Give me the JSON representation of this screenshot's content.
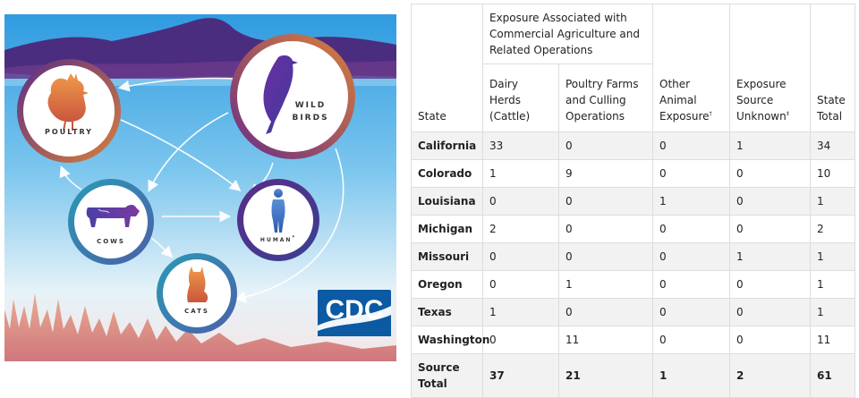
{
  "illustration": {
    "nodes": {
      "poultry": "POULTRY",
      "wild_birds_line1": "WILD",
      "wild_birds_line2": "BIRDS",
      "cows": "COWS",
      "human": "HUMAN",
      "human_sup": "*",
      "cats": "CATS"
    },
    "logo": "CDC",
    "colors": {
      "sky_top": "#3aa6e3",
      "sky_bottom": "#cfe9f6",
      "mountains": "#4b2d7f",
      "ring_purple": "#5a2d86",
      "ring_teal": "#2a9bb5",
      "ring_orange": "#d97a3b",
      "logo_bg": "#0b5aa3"
    }
  },
  "table": {
    "header": {
      "state": "State",
      "group": "Exposure Associated with Commercial Agriculture and Related Operations",
      "dairy": "Dairy Herds (Cattle)",
      "poultry": "Poultry Farms and Culling Operations",
      "other": "Other Animal Exposure",
      "other_sup": "†",
      "unknown": "Exposure Source Unknown",
      "unknown_sup": "‡",
      "total": "State Total"
    },
    "rows": [
      {
        "state": "California",
        "dairy": "33",
        "poultry": "0",
        "other": "0",
        "unknown": "1",
        "total": "34"
      },
      {
        "state": "Colorado",
        "dairy": "1",
        "poultry": "9",
        "other": "0",
        "unknown": "0",
        "total": "10"
      },
      {
        "state": "Louisiana",
        "dairy": "0",
        "poultry": "0",
        "other": "1",
        "unknown": "0",
        "total": "1"
      },
      {
        "state": "Michigan",
        "dairy": "2",
        "poultry": "0",
        "other": "0",
        "unknown": "0",
        "total": "2"
      },
      {
        "state": "Missouri",
        "dairy": "0",
        "poultry": "0",
        "other": "0",
        "unknown": "1",
        "total": "1"
      },
      {
        "state": "Oregon",
        "dairy": "0",
        "poultry": "1",
        "other": "0",
        "unknown": "0",
        "total": "1"
      },
      {
        "state": "Texas",
        "dairy": "1",
        "poultry": "0",
        "other": "0",
        "unknown": "0",
        "total": "1"
      },
      {
        "state": "Washington",
        "dairy": "0",
        "poultry": "11",
        "other": "0",
        "unknown": "0",
        "total": "11"
      }
    ],
    "totals": {
      "label": "Source Total",
      "dairy": "37",
      "poultry": "21",
      "other": "1",
      "unknown": "2",
      "total": "61"
    }
  }
}
